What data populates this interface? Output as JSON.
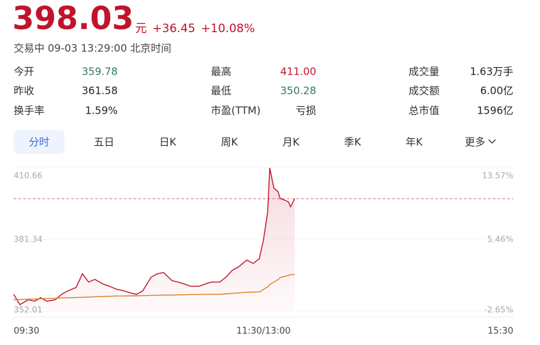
{
  "quote": {
    "price": "398.03",
    "unit": "元",
    "change": "+36.45",
    "change_pct": "+10.08%",
    "status": "交易中 09-03 13:29:00 北京时间"
  },
  "stats": [
    [
      {
        "label": "今开",
        "value": "359.78",
        "color": "#2e7d5b"
      },
      {
        "label": "最高",
        "value": "411.00",
        "color": "#c0142c"
      },
      {
        "label": "成交量",
        "value": "1.63万手",
        "color": "#222222"
      }
    ],
    [
      {
        "label": "昨收",
        "value": "361.58",
        "color": "#222222"
      },
      {
        "label": "最低",
        "value": "350.28",
        "color": "#2e7d5b"
      },
      {
        "label": "成交额",
        "value": "6.00亿",
        "color": "#222222"
      }
    ],
    [
      {
        "label": "换手率",
        "value": "1.59%",
        "color": "#222222"
      },
      {
        "label": "市盈(TTM)",
        "value": "亏损",
        "color": "#222222"
      },
      {
        "label": "总市值",
        "value": "1596亿",
        "color": "#222222"
      }
    ]
  ],
  "tabs": [
    "分时",
    "五日",
    "日K",
    "周K",
    "月K",
    "季K",
    "年K",
    "更多"
  ],
  "chart_data": {
    "type": "line",
    "x": [
      0,
      3,
      7,
      10,
      13,
      16,
      20,
      23,
      26,
      30,
      33,
      36,
      39,
      43,
      46,
      49,
      53,
      56,
      59,
      62,
      66,
      69,
      72,
      76,
      79,
      82,
      85,
      89,
      92,
      95,
      99,
      102,
      105,
      108,
      112,
      115,
      118,
      120,
      122,
      123,
      125,
      127,
      128,
      130,
      132,
      133,
      135
    ],
    "series": [
      {
        "name": "价格",
        "color": "#c0142c",
        "values": [
          359.0,
          354.8,
          356.8,
          356.2,
          357.6,
          356.2,
          356.8,
          359.0,
          360.4,
          361.8,
          367.4,
          364.0,
          365.1,
          363.2,
          362.3,
          361.2,
          360.4,
          359.6,
          359.0,
          360.4,
          366.0,
          367.4,
          367.9,
          364.6,
          364.0,
          363.2,
          362.3,
          362.3,
          363.2,
          364.0,
          364.0,
          366.0,
          368.8,
          370.2,
          373.0,
          371.6,
          373.5,
          381.3,
          392.5,
          410.6,
          402.3,
          400.9,
          398.1,
          397.5,
          396.7,
          394.7,
          398.0
        ]
      },
      {
        "name": "均价",
        "color": "#d9822b",
        "values": [
          356.8,
          356.9,
          357.0,
          357.1,
          357.2,
          357.3,
          357.4,
          357.5,
          357.6,
          357.7,
          357.8,
          357.9,
          358.0,
          358.1,
          358.2,
          358.3,
          358.3,
          358.4,
          358.4,
          358.5,
          358.6,
          358.6,
          358.7,
          358.7,
          358.8,
          358.8,
          358.9,
          358.9,
          359.0,
          359.0,
          359.0,
          359.2,
          359.4,
          359.6,
          359.8,
          359.9,
          360.0,
          361.0,
          362.0,
          363.0,
          364.0,
          365.0,
          365.8,
          366.3,
          366.7,
          367.0,
          367.1
        ]
      }
    ],
    "xlim": [
      0,
      240
    ],
    "xticks": [
      {
        "value": 0,
        "label": "09:30"
      },
      {
        "value": 120,
        "label": "11:30/13:00"
      },
      {
        "value": 240,
        "label": "15:30"
      }
    ],
    "ylim": [
      352.01,
      410.66
    ],
    "yticks": [
      352.01,
      381.34,
      410.66
    ],
    "y2lim": [
      -2.65,
      13.57
    ],
    "y2ticks": [
      {
        "value": -2.65,
        "label": "-2.65%"
      },
      {
        "value": 5.46,
        "label": "5.46%"
      },
      {
        "value": 13.57,
        "label": "13.57%"
      }
    ]
  }
}
